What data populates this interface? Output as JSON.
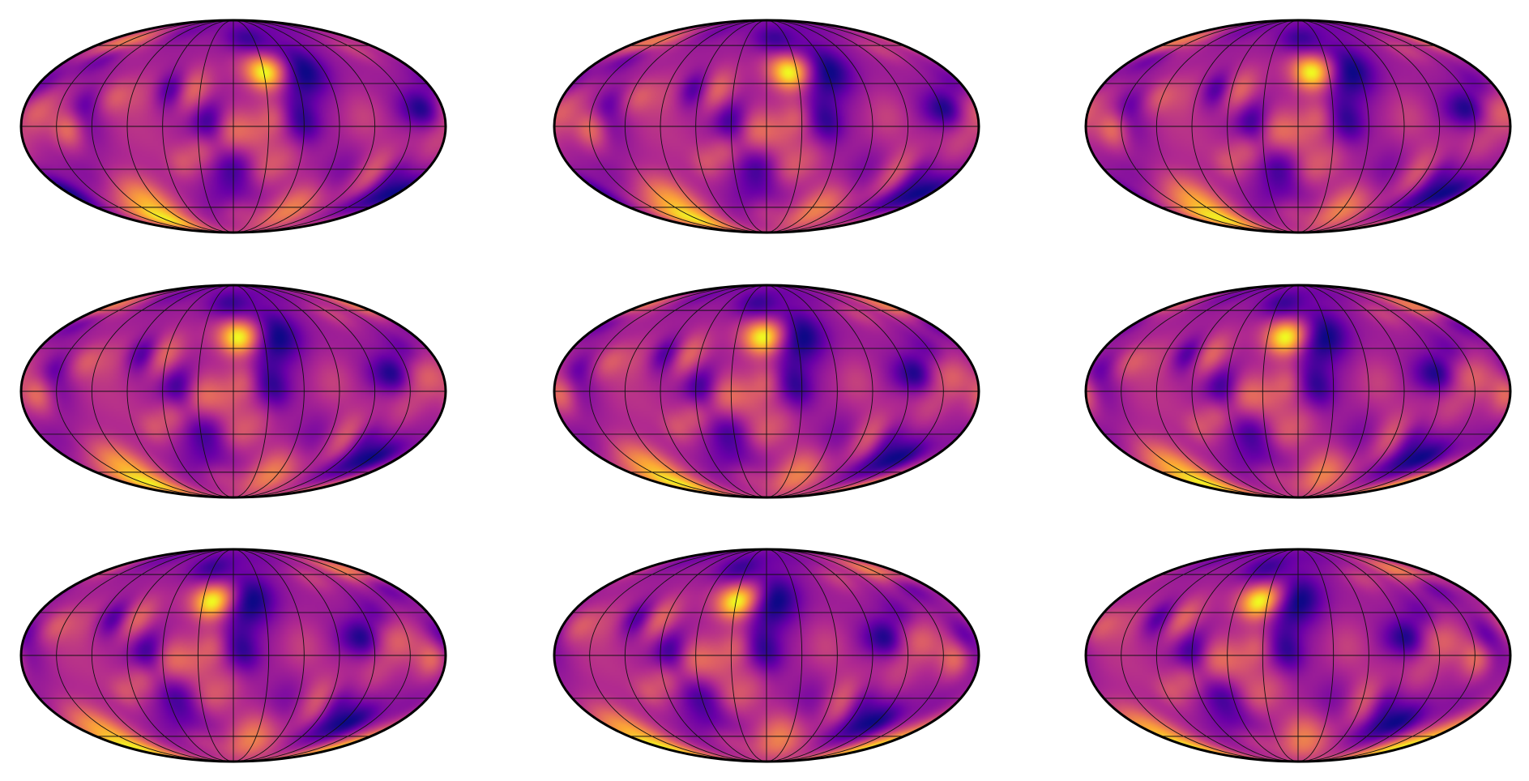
{
  "figure": {
    "rows": 3,
    "cols": 3,
    "projection": "mollweide",
    "colormap": "plasma",
    "colormap_stops": [
      "#0d0887",
      "#6a00a8",
      "#b12a90",
      "#e16462",
      "#fca636",
      "#f0f921"
    ],
    "graticule": {
      "meridian_spacing_deg": 30,
      "parallel_latitudes_deg": [
        -60,
        -30,
        0,
        30,
        60
      ]
    },
    "outline_color": "#000000",
    "maps": [
      {
        "id": "map-1",
        "seed": 11,
        "shift": 0.0
      },
      {
        "id": "map-2",
        "seed": 11,
        "shift": 0.15
      },
      {
        "id": "map-3",
        "seed": 11,
        "shift": 0.3
      },
      {
        "id": "map-4",
        "seed": 11,
        "shift": 0.45
      },
      {
        "id": "map-5",
        "seed": 11,
        "shift": 0.6
      },
      {
        "id": "map-6",
        "seed": 11,
        "shift": 0.75
      },
      {
        "id": "map-7",
        "seed": 11,
        "shift": 0.9
      },
      {
        "id": "map-8",
        "seed": 11,
        "shift": 1.05
      },
      {
        "id": "map-9",
        "seed": 11,
        "shift": 1.2
      }
    ]
  }
}
